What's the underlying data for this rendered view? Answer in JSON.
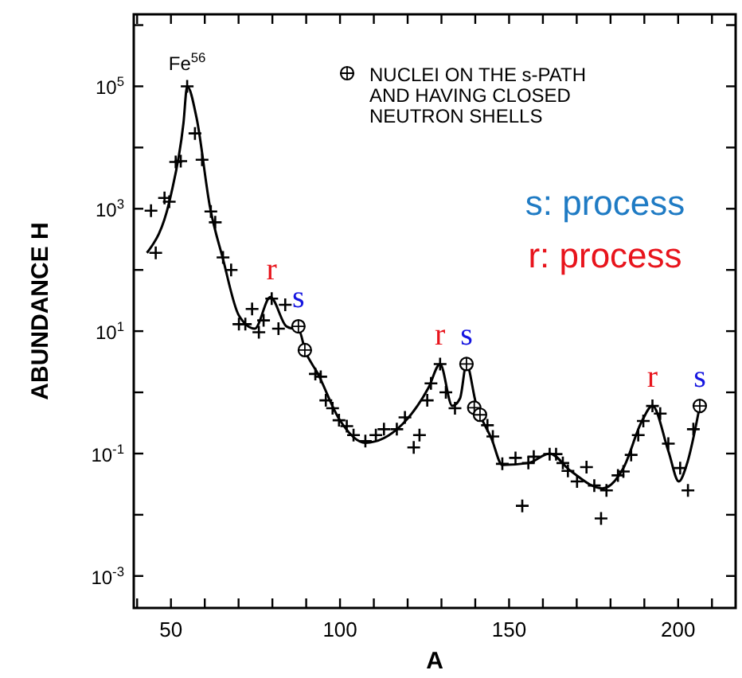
{
  "chart_data": {
    "type": "line",
    "xlabel": "A",
    "ylabel": "ABUNDANCE H",
    "log": "y",
    "xlim": [
      39,
      217
    ],
    "ylim": [
      0.0003,
      1500000
    ],
    "xticks": [
      {
        "value": 40,
        "label": null
      },
      50,
      {
        "value": 60,
        "label": null
      },
      {
        "value": 70,
        "label": null
      },
      {
        "value": 80,
        "label": null
      },
      {
        "value": 90,
        "label": null
      },
      100,
      {
        "value": 110,
        "label": null
      },
      {
        "value": 120,
        "label": null
      },
      {
        "value": 130,
        "label": null
      },
      {
        "value": 140,
        "label": null
      },
      150,
      {
        "value": 160,
        "label": null
      },
      {
        "value": 170,
        "label": null
      },
      {
        "value": 180,
        "label": null
      },
      {
        "value": 190,
        "label": null
      },
      200,
      {
        "value": 210,
        "label": null
      }
    ],
    "yticks": [
      {
        "value": 0.001,
        "label": "10$^{-3}$"
      },
      {
        "value": 0.01,
        "label": null
      },
      {
        "value": 0.1,
        "label": "10$^{-1}$"
      },
      {
        "value": 1,
        "label": null
      },
      {
        "value": 10,
        "label": "10$^{1}$"
      },
      {
        "value": 100,
        "label": null
      },
      {
        "value": 1000,
        "label": "10$^{3}$"
      },
      {
        "value": 10000,
        "label": null
      },
      {
        "value": 100000,
        "label": "10$^{5}$"
      },
      {
        "value": 1000000,
        "label": null
      }
    ],
    "grid": false,
    "legend": "top right",
    "series": [
      {
        "type": "line",
        "color": "#000000",
        "line_style": "solid",
        "x": [
          42.9,
          49.9,
          53.7,
          54.8,
          57.6,
          61.5,
          65.4,
          70.1,
          74.8,
          79.4,
          84.1,
          88,
          89.6,
          93.5,
          99.7,
          107.5,
          118.4,
          126.2,
          129.6,
          133.2,
          135.5,
          137.4,
          140.2,
          144.9,
          148,
          155.7,
          162,
          168.2,
          177.6,
          183.8,
          189.3,
          192.4,
          197.1,
          200.2,
          202.5,
          206.4
        ],
        "values": [
          190,
          1600,
          25000,
          100000,
          30000,
          1100,
          150,
          18,
          11,
          36,
          12,
          10,
          5,
          2,
          0.37,
          0.15,
          0.3,
          1.2,
          2.9,
          0.6,
          0.8,
          2.9,
          0.66,
          0.17,
          0.065,
          0.07,
          0.1,
          0.052,
          0.027,
          0.058,
          0.34,
          0.6,
          0.11,
          0.035,
          0.065,
          0.6
        ]
      },
      {
        "type": "scatter",
        "marker": "cross",
        "color": "#000000",
        "x": [
          44.1,
          45.5,
          48.1,
          49.5,
          51.4,
          52.9,
          54.8,
          57.1,
          59.2,
          61.8,
          63.1,
          65.4,
          67.8,
          70.1,
          72,
          74,
          76,
          77.4,
          79.8,
          81.8,
          83.8,
          92.7,
          94.3,
          95.8,
          97.8,
          99.7,
          102,
          104,
          107.5,
          110.6,
          113,
          116.8,
          119.2,
          121.8,
          123.5,
          125.8,
          126.9,
          129.6,
          131.3,
          134,
          143.6,
          145.2,
          148,
          151.9,
          153.9,
          155.7,
          157.3,
          162,
          163.9,
          165.9,
          167.4,
          170.1,
          172.9,
          175.2,
          177.2,
          178.8,
          182.2,
          183.8,
          186.1,
          188.2,
          189.7,
          192.4,
          194.7,
          197.1,
          200.6,
          202.9,
          204.5
        ],
        "values": [
          930,
          190,
          1500,
          1300,
          5800,
          6000,
          100000,
          17000,
          6300,
          900,
          600,
          160,
          100,
          13,
          13,
          23,
          9.6,
          15,
          34,
          11,
          27,
          2,
          1.8,
          0.74,
          0.55,
          0.35,
          0.28,
          0.2,
          0.16,
          0.2,
          0.25,
          0.25,
          0.39,
          0.126,
          0.2,
          0.74,
          1.4,
          2.9,
          1,
          0.55,
          0.29,
          0.19,
          0.068,
          0.085,
          0.014,
          0.07,
          0.089,
          0.098,
          0.098,
          0.07,
          0.052,
          0.035,
          0.06,
          0.03,
          0.0087,
          0.025,
          0.044,
          0.051,
          0.095,
          0.2,
          0.34,
          0.6,
          0.45,
          0.145,
          0.058,
          0.025,
          0.25
        ]
      },
      {
        "type": "scatter",
        "marker": "circle",
        "color": "#000000",
        "name": "NUCLEI ON THE s-PATH AND HAVING CLOSED NEUTRON SHELLS",
        "x": [
          87.7,
          89.6,
          137.4,
          139.7,
          141.4,
          206.4
        ],
        "values": [
          12,
          4.9,
          2.9,
          0.56,
          0.43,
          0.6
        ]
      }
    ],
    "annotations": [
      {
        "text": "Fe$^{56}$",
        "x": 54.8,
        "y": 100000
      },
      "s: process",
      "r: process",
      {
        "text": "r",
        "x": 79.8,
        "y": 34
      },
      {
        "text": "s",
        "x": 87.7,
        "y": 12
      },
      {
        "text": "r",
        "x": 129.6,
        "y": 2.9
      },
      {
        "text": "s",
        "x": 137.4,
        "y": 2.9
      },
      {
        "text": "r",
        "x": 192.4,
        "y": 0.6
      },
      {
        "text": "s",
        "x": 206.4,
        "y": 0.6
      }
    ]
  }
}
